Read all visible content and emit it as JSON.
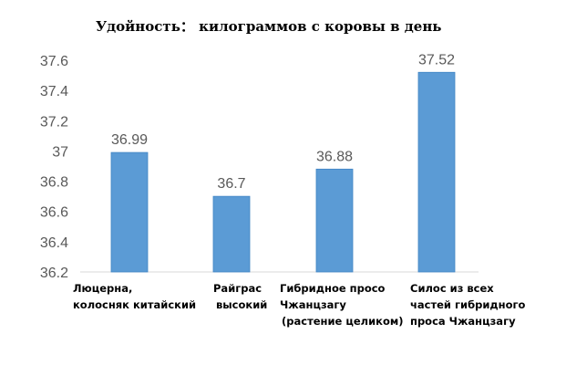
{
  "chart_data": {
    "type": "bar",
    "title": "Удойность： килограммов с коровы в день",
    "categories": [
      [
        "Люцерна,",
        "колосняк китайский"
      ],
      [
        "Райграс",
        "высокий"
      ],
      [
        "Гибридное просо",
        "Чжанцзагу",
        "(растение целиком)"
      ],
      [
        "Силос из всех",
        "частей гибридного",
        "проса Чжанцзагу"
      ]
    ],
    "values": [
      36.99,
      36.7,
      36.88,
      37.52
    ],
    "value_labels": [
      "36.99",
      "36.7",
      "36.88",
      "37.52"
    ],
    "yticks": [
      "36.2",
      "36.4",
      "36.6",
      "36.8",
      "37",
      "37.2",
      "37.4",
      "37.6"
    ],
    "ylim": [
      36.2,
      37.6
    ],
    "xlabel": "",
    "ylabel": "",
    "grid": false,
    "colors": {
      "bar": "#5b9bd5",
      "bar_edge": "#3f84c4"
    }
  }
}
